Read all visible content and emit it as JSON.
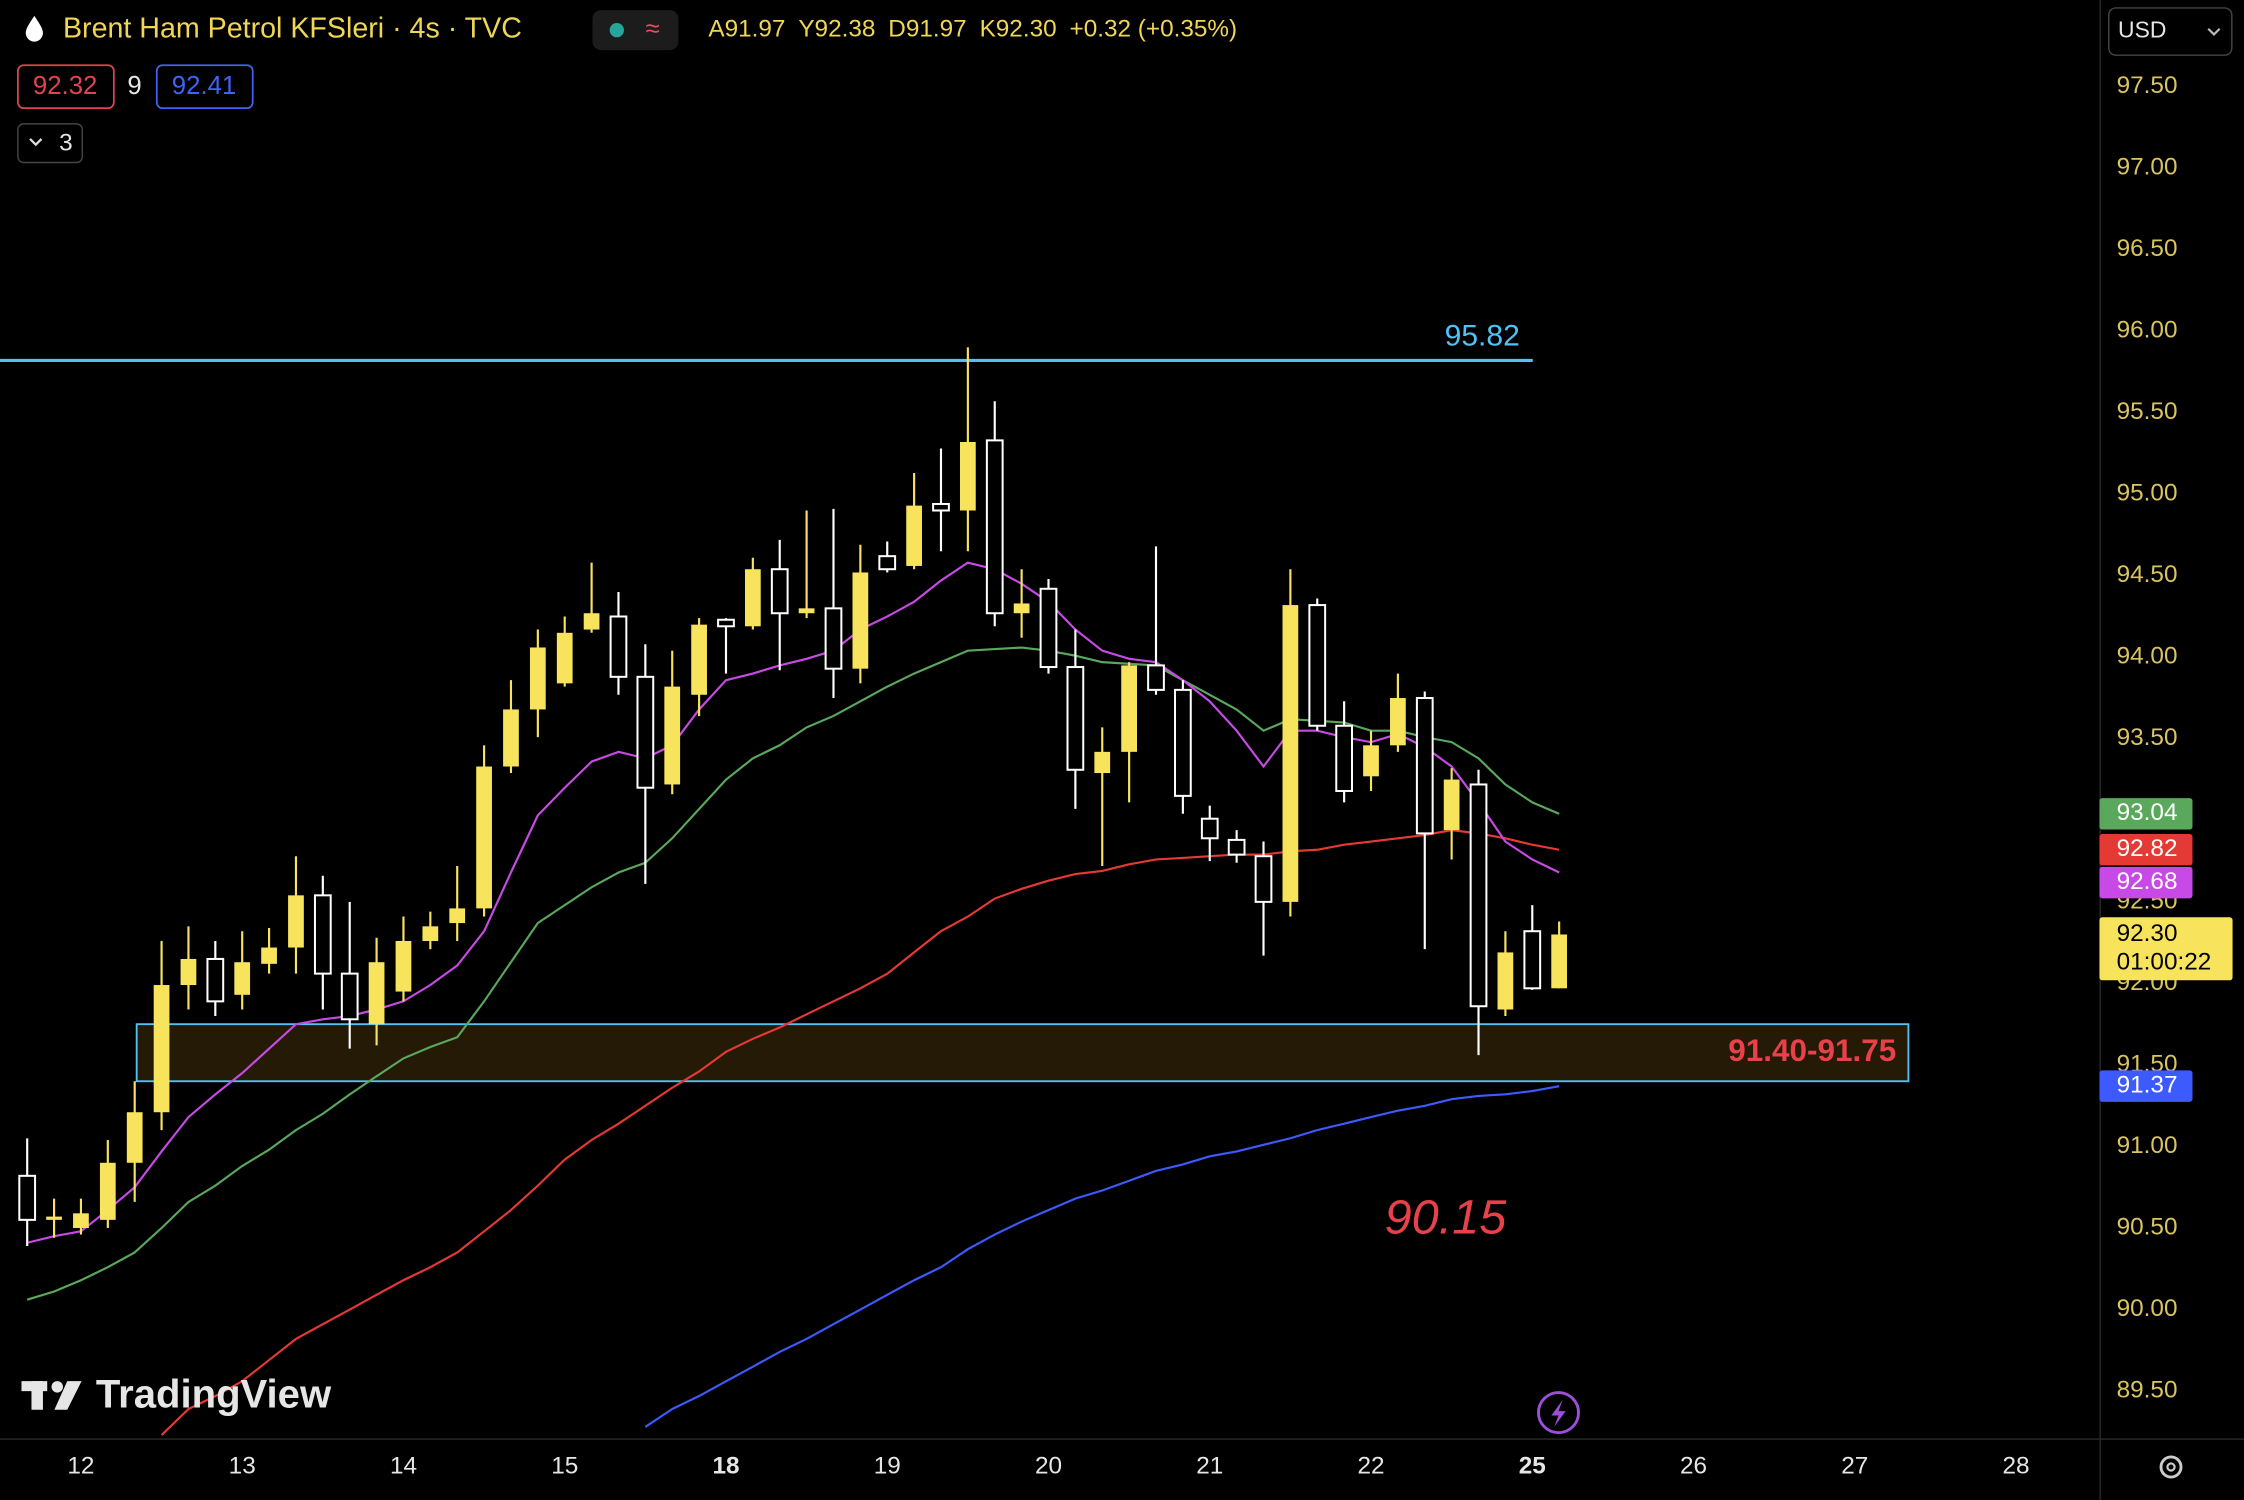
{
  "header": {
    "title": "Brent Ham Petrol KFSleri · 4s · TVC",
    "ohlc": [
      "A91.97",
      "Y92.38",
      "D91.97",
      "K92.30"
    ],
    "change": "+0.32 (+0.35%)",
    "color": "#f0d655"
  },
  "indicator_badges": [
    {
      "text": "92.32",
      "color": "#e0454f"
    },
    {
      "text": "9",
      "color": "#e6e6e6"
    },
    {
      "text": "92.41",
      "color": "#3f63f5"
    }
  ],
  "collapsed_count": "3",
  "currency": "USD",
  "watermark": "TradingView",
  "chart_data": {
    "type": "candlestick",
    "categories": [
      null,
      null,
      "12",
      null,
      null,
      null,
      null,
      null,
      "13",
      null,
      null,
      null,
      null,
      null,
      "14",
      null,
      null,
      null,
      null,
      null,
      "15",
      null,
      null,
      null,
      null,
      null,
      "18",
      null,
      null,
      null,
      null,
      null,
      "19",
      null,
      null,
      null,
      null,
      null,
      "20",
      null,
      null,
      null,
      null,
      null,
      "21",
      null,
      null,
      null,
      null,
      null,
      "22",
      null,
      null,
      null,
      null,
      null,
      "25",
      null,
      null,
      null,
      null,
      null,
      "26",
      null,
      null,
      null,
      null,
      null,
      "27",
      null,
      null,
      null,
      null,
      null,
      "28",
      null,
      null,
      null
    ],
    "bold_category_indices": [
      26,
      56
    ],
    "open": [
      90.82,
      90.55,
      90.5,
      90.55,
      90.9,
      91.21,
      91.99,
      92.15,
      91.93,
      92.12,
      92.22,
      92.54,
      92.06,
      91.75,
      91.95,
      92.26,
      92.37,
      92.46,
      93.33,
      93.68,
      93.84,
      94.17,
      94.25,
      93.88,
      93.22,
      93.77,
      94.23,
      94.19,
      94.54,
      94.27,
      94.3,
      93.93,
      94.62,
      94.56,
      94.94,
      94.9,
      95.33,
      94.27,
      94.42,
      93.94,
      93.29,
      93.42,
      93.95,
      93.8,
      93.01,
      92.88,
      92.78,
      92.5,
      94.32,
      93.58,
      93.27,
      93.46,
      93.75,
      92.94,
      93.22,
      91.84,
      92.32,
      91.97,
      null,
      null,
      null,
      null,
      null,
      null,
      null,
      null,
      null,
      null,
      null,
      null,
      null,
      null,
      null,
      null,
      null,
      null,
      null,
      null
    ],
    "high": [
      91.05,
      90.68,
      90.68,
      91.04,
      91.4,
      92.26,
      92.35,
      92.26,
      92.32,
      92.34,
      92.78,
      92.66,
      92.5,
      92.28,
      92.41,
      92.44,
      92.72,
      93.46,
      93.86,
      94.17,
      94.25,
      94.58,
      94.4,
      94.08,
      94.04,
      94.24,
      94.24,
      94.61,
      94.72,
      94.9,
      94.91,
      94.69,
      94.71,
      95.13,
      95.28,
      95.9,
      95.57,
      94.54,
      94.48,
      94.17,
      93.57,
      93.97,
      94.68,
      93.86,
      93.09,
      92.94,
      92.87,
      94.54,
      94.36,
      93.73,
      93.55,
      93.9,
      93.79,
      93.32,
      93.31,
      92.32,
      92.48,
      92.38,
      null,
      null,
      null,
      null,
      null,
      null,
      null,
      null,
      null,
      null,
      null,
      null,
      null,
      null,
      null,
      null,
      null,
      null,
      null,
      null
    ],
    "low": [
      90.39,
      90.44,
      90.46,
      90.5,
      90.66,
      91.1,
      91.84,
      91.8,
      91.84,
      92.06,
      92.06,
      91.84,
      91.6,
      91.62,
      91.89,
      92.21,
      92.26,
      92.41,
      93.29,
      93.51,
      93.82,
      94.15,
      93.77,
      92.61,
      93.16,
      93.64,
      93.9,
      94.17,
      93.92,
      94.24,
      93.75,
      93.84,
      94.52,
      94.54,
      94.65,
      94.65,
      94.19,
      94.12,
      93.9,
      93.07,
      92.72,
      93.11,
      93.77,
      93.04,
      92.75,
      92.74,
      92.17,
      92.41,
      93.55,
      93.11,
      93.18,
      93.42,
      92.21,
      92.76,
      91.56,
      91.8,
      91.96,
      91.97,
      null,
      null,
      null,
      null,
      null,
      null,
      null,
      null,
      null,
      null,
      null,
      null,
      null,
      null,
      null,
      null,
      null,
      null,
      null,
      null
    ],
    "close": [
      90.55,
      90.57,
      90.59,
      90.9,
      91.21,
      91.99,
      92.15,
      91.89,
      92.13,
      92.22,
      92.54,
      92.06,
      91.78,
      92.13,
      92.26,
      92.35,
      92.46,
      93.33,
      93.68,
      94.06,
      94.15,
      94.27,
      93.88,
      93.2,
      93.82,
      94.2,
      94.19,
      94.54,
      94.27,
      94.3,
      93.93,
      94.52,
      94.54,
      94.93,
      94.9,
      95.32,
      94.27,
      94.33,
      93.94,
      93.31,
      93.42,
      93.95,
      93.8,
      93.15,
      92.89,
      92.79,
      92.5,
      94.32,
      93.58,
      93.18,
      93.46,
      93.75,
      92.92,
      93.25,
      91.86,
      92.19,
      91.97,
      92.3,
      null,
      null,
      null,
      null,
      null,
      null,
      null,
      null,
      null,
      null,
      null,
      null,
      null,
      null,
      null,
      null,
      null,
      null,
      null,
      null
    ],
    "up_color": "#f8e45c",
    "down_color": "#ffffff",
    "ylim": [
      89.21,
      98.03
    ],
    "yticks": [
      {
        "value": 89.5,
        "label": "89.50"
      },
      {
        "value": 90,
        "label": "90.00"
      },
      {
        "value": 90.5,
        "label": "90.50"
      },
      {
        "value": 91,
        "label": "91.00"
      },
      {
        "value": 91.5,
        "label": "91.50"
      },
      {
        "value": 92,
        "label": "92.00"
      },
      {
        "value": 92.5,
        "label": "92.50"
      },
      {
        "value": 93,
        "label": "93.00"
      },
      {
        "value": 93.5,
        "label": "93.50"
      },
      {
        "value": 94,
        "label": "94.00"
      },
      {
        "value": 94.5,
        "label": "94.50"
      },
      {
        "value": 95,
        "label": "95.00"
      },
      {
        "value": 95.5,
        "label": "95.50"
      },
      {
        "value": 96,
        "label": "96.00"
      },
      {
        "value": 96.5,
        "label": "96.50"
      },
      {
        "value": 97,
        "label": "97.00"
      },
      {
        "value": 97.5,
        "label": "97.50"
      }
    ],
    "grid": false,
    "moving_averages": [
      {
        "color": "#e53935",
        "values": [
          null,
          null,
          null,
          null,
          null,
          89.23,
          89.39,
          89.47,
          89.56,
          89.69,
          89.82,
          89.91,
          90.0,
          90.09,
          90.18,
          90.26,
          90.35,
          90.48,
          90.61,
          90.76,
          90.92,
          91.04,
          91.14,
          91.25,
          91.36,
          91.46,
          91.58,
          91.66,
          91.73,
          91.81,
          91.89,
          91.97,
          92.06,
          92.19,
          92.32,
          92.41,
          92.52,
          92.58,
          92.63,
          92.67,
          92.69,
          92.73,
          92.76,
          92.77,
          92.78,
          92.79,
          92.79,
          92.81,
          92.82,
          92.85,
          92.87,
          92.89,
          92.91,
          92.94,
          92.92,
          92.89,
          92.85,
          92.82,
          null,
          null,
          null,
          null,
          null,
          null,
          null,
          null,
          null,
          null,
          null,
          null,
          null,
          null,
          null,
          null,
          null,
          null,
          null,
          null
        ]
      },
      {
        "color": "#3d5afe",
        "values": [
          null,
          null,
          null,
          null,
          null,
          null,
          null,
          null,
          null,
          null,
          null,
          null,
          null,
          null,
          null,
          null,
          null,
          null,
          null,
          null,
          null,
          null,
          null,
          89.28,
          89.39,
          89.47,
          89.56,
          89.65,
          89.74,
          89.82,
          89.91,
          90.0,
          90.09,
          90.18,
          90.26,
          90.37,
          90.46,
          90.54,
          90.61,
          90.68,
          90.73,
          90.79,
          90.85,
          90.89,
          90.94,
          90.97,
          91.01,
          91.05,
          91.1,
          91.14,
          91.18,
          91.22,
          91.25,
          91.29,
          91.31,
          91.32,
          91.34,
          91.37,
          null,
          null,
          null,
          null,
          null,
          null,
          null,
          null,
          null,
          null,
          null,
          null,
          null,
          null,
          null,
          null,
          null,
          null,
          null,
          null
        ]
      },
      {
        "color": "#5aa85c",
        "values": [
          90.06,
          90.11,
          90.18,
          90.26,
          90.35,
          90.5,
          90.66,
          90.76,
          90.88,
          90.98,
          91.1,
          91.2,
          91.32,
          91.43,
          91.54,
          91.61,
          91.67,
          91.89,
          92.13,
          92.37,
          92.48,
          92.59,
          92.68,
          92.74,
          92.89,
          93.07,
          93.25,
          93.38,
          93.46,
          93.57,
          93.64,
          93.73,
          93.82,
          93.9,
          93.97,
          94.04,
          94.05,
          94.06,
          94.04,
          94.01,
          93.97,
          93.96,
          93.95,
          93.86,
          93.77,
          93.68,
          93.55,
          93.62,
          93.61,
          93.6,
          93.55,
          93.55,
          93.51,
          93.48,
          93.38,
          93.22,
          93.11,
          93.04,
          null,
          null,
          null,
          null,
          null,
          null,
          null,
          null,
          null,
          null,
          null,
          null,
          null,
          null,
          null,
          null,
          null,
          null,
          null,
          null
        ]
      },
      {
        "color": "#c84ae6",
        "values": [
          90.41,
          90.45,
          90.48,
          90.61,
          90.75,
          90.97,
          91.18,
          91.32,
          91.45,
          91.6,
          91.75,
          91.78,
          91.8,
          91.84,
          91.89,
          91.99,
          92.11,
          92.32,
          92.68,
          93.03,
          93.2,
          93.36,
          93.42,
          93.38,
          93.46,
          93.68,
          93.86,
          93.9,
          93.95,
          93.99,
          94.04,
          94.17,
          94.25,
          94.34,
          94.47,
          94.58,
          94.54,
          94.45,
          94.34,
          94.17,
          94.04,
          93.99,
          93.97,
          93.86,
          93.73,
          93.55,
          93.33,
          93.55,
          93.55,
          93.51,
          93.48,
          93.53,
          93.45,
          93.33,
          93.11,
          92.87,
          92.76,
          92.68,
          null,
          null,
          null,
          null,
          null,
          null,
          null,
          null,
          null,
          null,
          null,
          null,
          null,
          null,
          null,
          null,
          null,
          null,
          null,
          null
        ]
      }
    ],
    "levels": [
      {
        "value": 95.82,
        "label": "95.82",
        "color": "#4fc3f7"
      }
    ],
    "zone": {
      "low": 91.4,
      "high": 91.75,
      "label": "91.40-91.75",
      "border": "#4fc3f7",
      "fill": "#241a06",
      "label_color": "#e8414a"
    },
    "annotation": {
      "text": "90.15",
      "color": "#e8414a"
    },
    "last_price": {
      "value": 92.3,
      "label": "92.30",
      "countdown": "01:00:22",
      "color": "#f8e45c"
    }
  }
}
